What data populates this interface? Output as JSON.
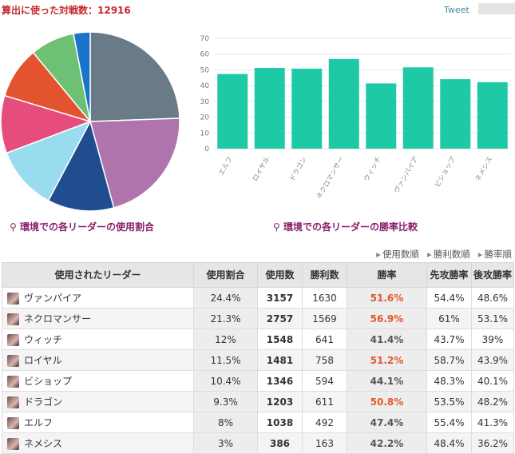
{
  "header": {
    "title": "算出に使った対戦数：12916",
    "tweet": "Tweet"
  },
  "chart_data": [
    {
      "type": "pie",
      "values": [
        24.4,
        21.3,
        12,
        11.5,
        10.4,
        9.3,
        8,
        3
      ],
      "colors": [
        "#687b86",
        "#b074ad",
        "#1f4d8f",
        "#9adcef",
        "#e64d7c",
        "#e4532f",
        "#6dc175",
        "#1b74c9"
      ],
      "caption": "環境での各リーダーの使用割合"
    },
    {
      "type": "bar",
      "categories": [
        "エルフ",
        "ロイヤル",
        "ドラゴン",
        "ネクロマンサー",
        "ウィッチ",
        "ヴァンパイア",
        "ビショップ",
        "ネメシス"
      ],
      "values": [
        47.4,
        51.2,
        50.8,
        56.9,
        41.4,
        51.6,
        44.1,
        42.2
      ],
      "color": "#1ecaa6",
      "ylim": [
        0,
        70
      ],
      "yticks": [
        0,
        10,
        20,
        30,
        40,
        50,
        60,
        70
      ],
      "grid": true,
      "caption": "環境での各リーダーの勝率比較"
    }
  ],
  "sort_links": [
    "使用数順",
    "勝利数順",
    "勝率順"
  ],
  "table": {
    "columns": [
      "使用されたリーダー",
      "使用割合",
      "使用数",
      "勝利数",
      "勝率",
      "先攻勝率",
      "後攻勝率"
    ],
    "rows": [
      [
        "ヴァンパイア",
        "24.4%",
        "3157",
        "1630",
        "51.6%",
        "54.4%",
        "48.6%"
      ],
      [
        "ネクロマンサー",
        "21.3%",
        "2757",
        "1569",
        "56.9%",
        "61%",
        "53.1%"
      ],
      [
        "ウィッチ",
        "12%",
        "1548",
        "641",
        "41.4%",
        "43.7%",
        "39%"
      ],
      [
        "ロイヤル",
        "11.5%",
        "1481",
        "758",
        "51.2%",
        "58.7%",
        "43.9%"
      ],
      [
        "ビショップ",
        "10.4%",
        "1346",
        "594",
        "44.1%",
        "48.3%",
        "40.1%"
      ],
      [
        "ドラゴン",
        "9.3%",
        "1203",
        "611",
        "50.8%",
        "53.5%",
        "48.2%"
      ],
      [
        "エルフ",
        "8%",
        "1038",
        "492",
        "47.4%",
        "55.4%",
        "41.3%"
      ],
      [
        "ネメシス",
        "3%",
        "386",
        "163",
        "42.2%",
        "48.4%",
        "36.2%"
      ]
    ]
  }
}
